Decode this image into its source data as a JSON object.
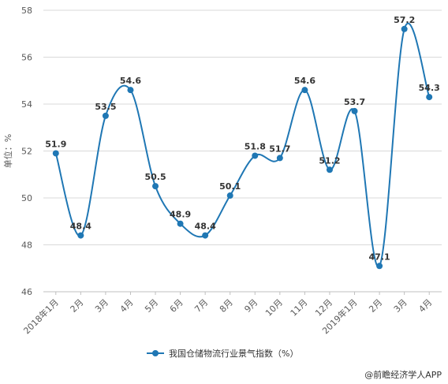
{
  "chart_data": {
    "type": "line",
    "title": "",
    "ylabel": "单位：%",
    "xlabel": "",
    "ylim": [
      46,
      58
    ],
    "yticks": [
      46,
      48,
      50,
      52,
      54,
      56,
      58
    ],
    "grid": true,
    "legend_position": "bottom-center",
    "categories": [
      "2018年1月",
      "2月",
      "3月",
      "4月",
      "5月",
      "6月",
      "7月",
      "8月",
      "9月",
      "10月",
      "11月",
      "12月",
      "2019年1月",
      "2月",
      "3月",
      "4月"
    ],
    "series": [
      {
        "name": "我国仓储物流行业景气指数（%）",
        "values": [
          51.9,
          48.4,
          53.5,
          54.6,
          50.5,
          48.9,
          48.4,
          50.1,
          51.8,
          51.7,
          54.6,
          51.2,
          53.7,
          47.1,
          57.2,
          54.3
        ],
        "color": "#1f77b4"
      }
    ]
  },
  "source": "@前瞻经济学人APP"
}
